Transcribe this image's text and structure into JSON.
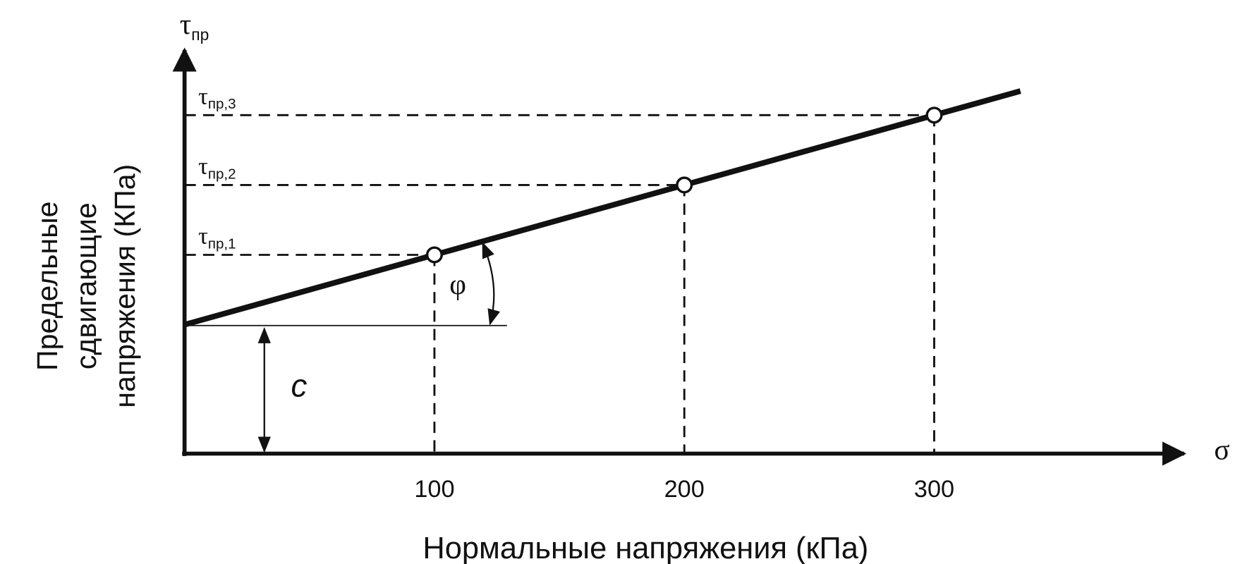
{
  "y_axis": {
    "symbol": "τ",
    "subscript": "пр",
    "label_lines": [
      "Предельные",
      "сдвигающие",
      "напряжения (КПа)"
    ]
  },
  "x_axis": {
    "symbol": "σ",
    "label": "Нормальные напряжения  (кПа)",
    "ticks": [
      100,
      200,
      300
    ]
  },
  "levels": [
    {
      "symbol": "τ",
      "subscript": "пр,1"
    },
    {
      "symbol": "τ",
      "subscript": "пр,2"
    },
    {
      "symbol": "τ",
      "subscript": "пр,3"
    }
  ],
  "cohesion_label": "c",
  "angle_label": "φ"
}
